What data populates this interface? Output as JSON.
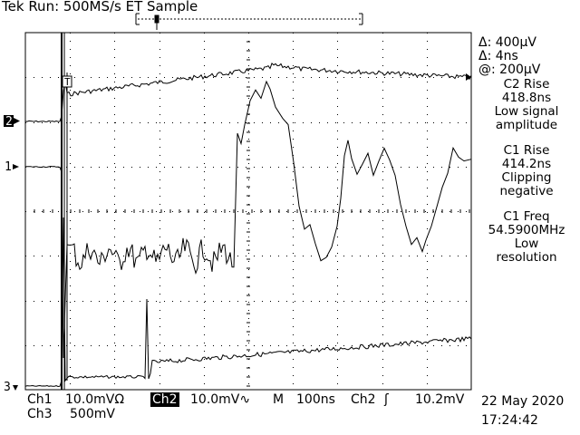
{
  "header": {
    "brand": "Tek",
    "status": "Run: 500MS/s ET Sample"
  },
  "cursors": {
    "delta_v": "Δ: 400μV",
    "delta_t": "Δ: 4ns",
    "at": "@: 200μV"
  },
  "measurements": [
    {
      "name": "C2 Rise",
      "value": "418.8ns",
      "note_1": "Low signal",
      "note_2": "amplitude"
    },
    {
      "name": "C1 Rise",
      "value": "414.2ns",
      "note_1": "Clipping",
      "note_2": "negative"
    },
    {
      "name": "C1 Freq",
      "value": "54.5900MHz",
      "note_1": "Low",
      "note_2": "resolution"
    }
  ],
  "channel_markers": {
    "ch2": "2",
    "ch1": "1",
    "ch3": "3",
    "trigger": "T"
  },
  "footer": {
    "ch1_label": "Ch1",
    "ch1_scale": "10.0mVΩ",
    "ch2_label": "Ch2",
    "ch2_scale": "10.0mV∿",
    "timebase_label": "M",
    "timebase": "100ns",
    "trigger_source": "Ch2",
    "trigger_slope": "ʃ",
    "trigger_level": "10.2mV",
    "ch3_label": "Ch3",
    "ch3_scale": "500mV",
    "date": "22 May 2020",
    "time": "17:24:42"
  },
  "colors": {
    "ink": "#000000",
    "background": "#ffffff"
  }
}
